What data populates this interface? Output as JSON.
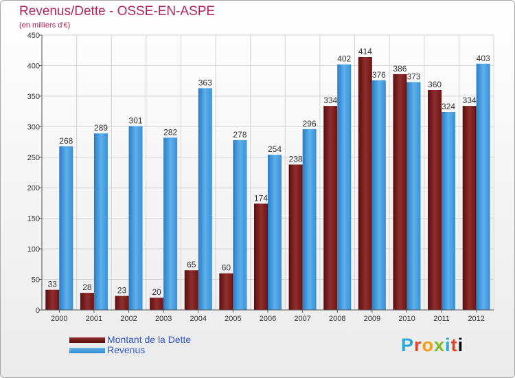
{
  "header": {
    "title": "Revenus/Dette - OSSE-EN-ASPE",
    "subtitle": "(en milliers d'€)"
  },
  "legend": {
    "debt_label": "Montant de la Dette",
    "revenue_label": "Revenus"
  },
  "brand": {
    "letters": [
      "P",
      "r",
      "o",
      "x",
      "i",
      "t",
      "i"
    ]
  },
  "colors": {
    "debt": "#7a1a1a",
    "debt_light": "#8b2a2a",
    "revenue": "#2d86cf",
    "revenue_light": "#5aace8",
    "title": "#b1255d",
    "legend_text": "#3355cc"
  },
  "chart_data": {
    "type": "bar",
    "title": "Revenus/Dette - OSSE-EN-ASPE",
    "ylabel": "(en milliers d'€)",
    "xlabel": "",
    "ylim": [
      0,
      450
    ],
    "yticks": [
      0,
      50,
      100,
      150,
      200,
      250,
      300,
      350,
      400,
      450
    ],
    "grid": true,
    "legend_position": "bottom-left",
    "categories": [
      "2000",
      "2001",
      "2002",
      "2003",
      "2004",
      "2005",
      "2006",
      "2007",
      "2008",
      "2009",
      "2010",
      "2011",
      "2012"
    ],
    "series": [
      {
        "name": "Montant de la Dette",
        "values": [
          33,
          28,
          23,
          20,
          65,
          60,
          174,
          238,
          334,
          414,
          386,
          360,
          334
        ]
      },
      {
        "name": "Revenus",
        "values": [
          268,
          289,
          301,
          282,
          363,
          278,
          254,
          296,
          402,
          376,
          373,
          324,
          403
        ]
      }
    ]
  }
}
